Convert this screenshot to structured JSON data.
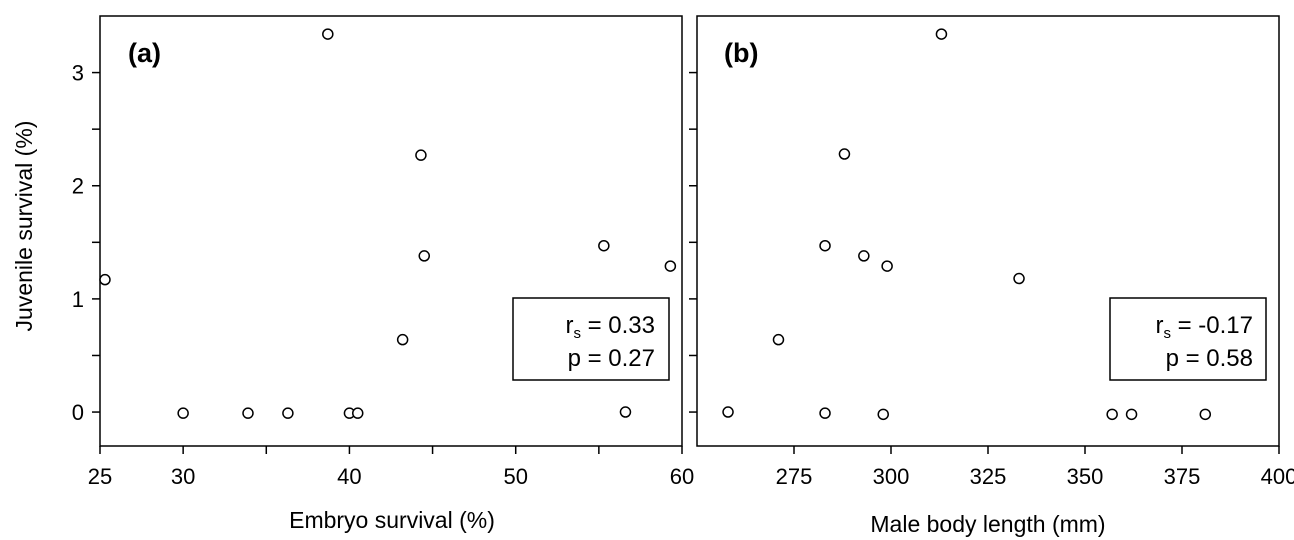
{
  "chart_data": [
    {
      "type": "scatter",
      "panel_label": "(a)",
      "xlabel": "Embryo survival (%)",
      "ylabel": "Juvenile survival (%)",
      "xlim": [
        25,
        60
      ],
      "ylim": [
        -0.3,
        3.5
      ],
      "xticks": [
        25,
        30,
        40,
        50,
        60
      ],
      "x_minor_ticks": [
        35,
        45,
        55
      ],
      "yticks": [
        0,
        1,
        2,
        3
      ],
      "y_minor_ticks": [
        0.5,
        1.5,
        2.5
      ],
      "x": [
        25.3,
        30.0,
        33.9,
        36.3,
        38.7,
        40.0,
        40.5,
        43.2,
        44.3,
        44.5,
        55.3,
        56.6,
        59.3
      ],
      "y": [
        1.17,
        -0.01,
        -0.01,
        -0.01,
        3.34,
        -0.01,
        -0.01,
        0.64,
        2.27,
        1.38,
        1.47,
        0.0,
        1.29
      ],
      "annotation": {
        "rs_symbol": "r",
        "rs_sub": "s",
        "rs_value": " = 0.33",
        "p_line": "p = 0.27"
      }
    },
    {
      "type": "scatter",
      "panel_label": "(b)",
      "xlabel": "Male body length (mm)",
      "ylabel": "",
      "xlim": [
        250,
        400
      ],
      "ylim": [
        -0.3,
        3.5
      ],
      "xticks": [
        275,
        300,
        325,
        350,
        375,
        400
      ],
      "yticks": [
        0,
        1,
        2,
        3
      ],
      "y_minor_ticks": [
        0.5,
        1.5,
        2.5
      ],
      "x": [
        258,
        271,
        283,
        283,
        288,
        293,
        298,
        299,
        313,
        333,
        357,
        362,
        381
      ],
      "y": [
        0.0,
        0.64,
        1.47,
        -0.01,
        2.28,
        1.38,
        -0.02,
        1.29,
        3.34,
        1.18,
        -0.02,
        -0.02,
        -0.02
      ],
      "annotation": {
        "rs_symbol": "r",
        "rs_sub": "s",
        "rs_value": " = -0.17",
        "p_line": "p = 0.58"
      }
    }
  ]
}
